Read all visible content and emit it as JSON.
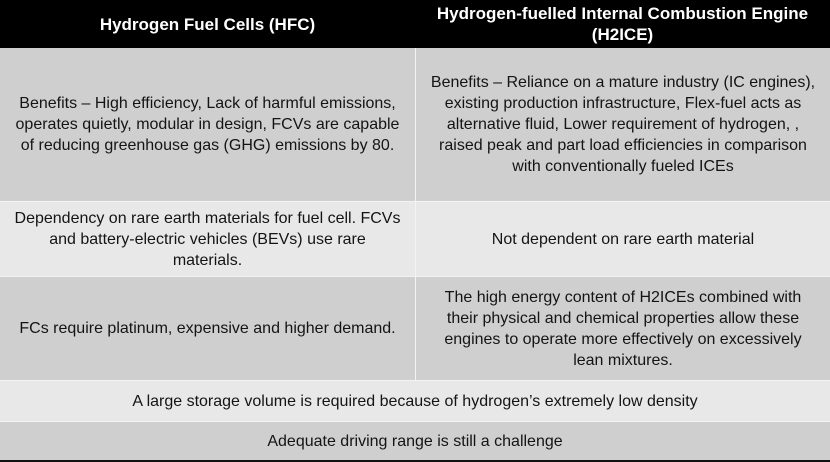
{
  "header": {
    "hfc": "Hydrogen Fuel Cells (HFC)",
    "h2ice": "Hydrogen-fuelled Internal Combustion Engine (H2ICE)"
  },
  "rows": [
    {
      "hfc": "Benefits – High efficiency, Lack of harmful emissions, operates quietly, modular in design, FCVs are capable of reducing greenhouse gas (GHG) emissions by 80.",
      "h2ice": "Benefits – Reliance on a mature industry (IC engines), existing production infrastructure, Flex-fuel acts as alternative fluid, Lower requirement of hydrogen, , raised peak and part load efficiencies in comparison with conventionally fueled ICEs"
    },
    {
      "hfc": "Dependency on rare earth materials for fuel  cell. FCVs and battery-electric vehicles (BEVs) use rare materials.",
      "h2ice": "Not dependent on rare earth material"
    },
    {
      "hfc": "FCs require platinum, expensive and higher demand.",
      "h2ice": "The high energy content of H2ICEs combined with their physical and chemical properties allow these engines to operate more effectively on excessively lean mixtures."
    }
  ],
  "shared_rows": [
    "A large storage volume is required because of hydrogen’s extremely low density",
    "Adequate driving range is still a challenge"
  ]
}
